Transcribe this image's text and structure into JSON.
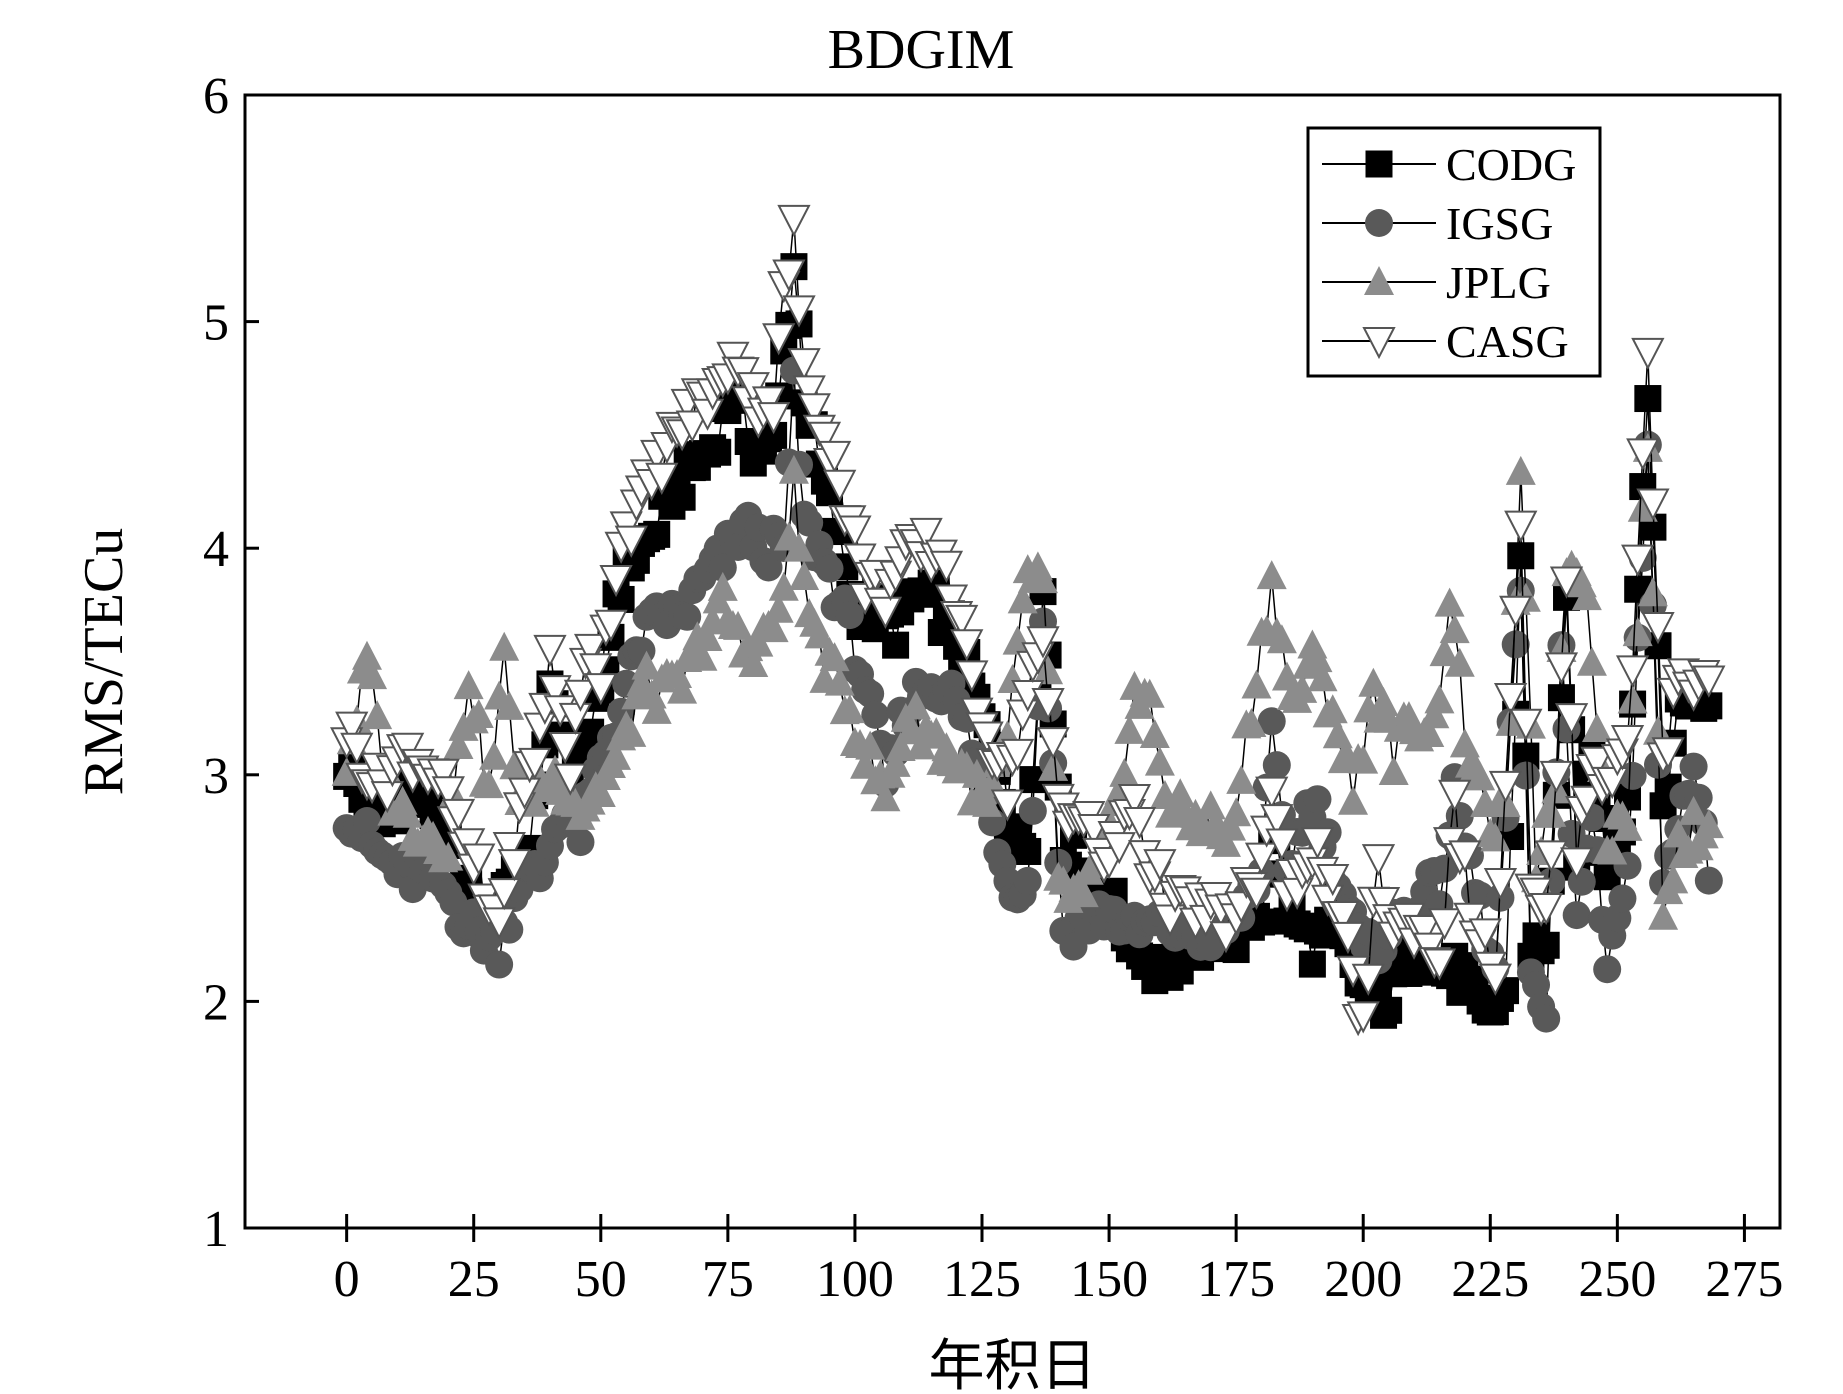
{
  "chart_data": {
    "type": "scatter",
    "title": "BDGIM",
    "xlabel": "年积日",
    "ylabel": "RMS/TECu",
    "xlim": [
      -20,
      282
    ],
    "ylim": [
      1,
      6
    ],
    "xticks": [
      0,
      25,
      50,
      75,
      100,
      125,
      150,
      175,
      200,
      225,
      250,
      275
    ],
    "yticks": [
      1,
      2,
      3,
      4,
      5,
      6
    ],
    "grid": false,
    "legend_position": "top-right",
    "series": [
      {
        "name": "CODG",
        "marker": "square",
        "color": "#000000",
        "anchors": [
          [
            0,
            3.05
          ],
          [
            6,
            2.75
          ],
          [
            12,
            2.95
          ],
          [
            18,
            2.85
          ],
          [
            22,
            2.55
          ],
          [
            26,
            2.38
          ],
          [
            28,
            2.35
          ],
          [
            30,
            2.45
          ],
          [
            33,
            2.6
          ],
          [
            36,
            2.65
          ],
          [
            40,
            3.35
          ],
          [
            44,
            2.95
          ],
          [
            48,
            3.2
          ],
          [
            50,
            3.3
          ],
          [
            53,
            3.8
          ],
          [
            56,
            3.95
          ],
          [
            60,
            4.05
          ],
          [
            64,
            4.25
          ],
          [
            68,
            4.35
          ],
          [
            72,
            4.45
          ],
          [
            76,
            4.7
          ],
          [
            80,
            4.45
          ],
          [
            84,
            4.45
          ],
          [
            88,
            5.25
          ],
          [
            90,
            4.7
          ],
          [
            93,
            4.35
          ],
          [
            96,
            4.1
          ],
          [
            100,
            3.75
          ],
          [
            104,
            3.7
          ],
          [
            108,
            3.65
          ],
          [
            112,
            3.8
          ],
          [
            116,
            3.75
          ],
          [
            120,
            3.6
          ],
          [
            124,
            3.3
          ],
          [
            128,
            3.05
          ],
          [
            131,
            2.7
          ],
          [
            134,
            2.7
          ],
          [
            137,
            3.8
          ],
          [
            141,
            2.7
          ],
          [
            145,
            2.6
          ],
          [
            150,
            2.45
          ],
          [
            155,
            2.25
          ],
          [
            160,
            2.15
          ],
          [
            165,
            2.2
          ],
          [
            170,
            2.3
          ],
          [
            175,
            2.3
          ],
          [
            180,
            2.4
          ],
          [
            182,
            2.8
          ],
          [
            185,
            2.4
          ],
          [
            190,
            2.25
          ],
          [
            195,
            2.3
          ],
          [
            200,
            2.05
          ],
          [
            205,
            2.0
          ],
          [
            210,
            2.25
          ],
          [
            215,
            2.15
          ],
          [
            220,
            2.1
          ],
          [
            224,
            1.9
          ],
          [
            228,
            2.05
          ],
          [
            231,
            3.95
          ],
          [
            233,
            2.25
          ],
          [
            236,
            2.2
          ],
          [
            240,
            3.7
          ],
          [
            242,
            2.55
          ],
          [
            245,
            3.1
          ],
          [
            248,
            2.6
          ],
          [
            252,
            2.9
          ],
          [
            256,
            4.75
          ],
          [
            259,
            2.85
          ],
          [
            262,
            3.3
          ],
          [
            265,
            3.4
          ],
          [
            268,
            3.3
          ]
        ]
      },
      {
        "name": "IGSG",
        "marker": "circle",
        "color": "#595959",
        "anchors": [
          [
            0,
            2.85
          ],
          [
            6,
            2.65
          ],
          [
            12,
            2.55
          ],
          [
            18,
            2.55
          ],
          [
            22,
            2.4
          ],
          [
            26,
            2.3
          ],
          [
            30,
            2.25
          ],
          [
            34,
            2.55
          ],
          [
            38,
            2.55
          ],
          [
            42,
            2.85
          ],
          [
            46,
            2.75
          ],
          [
            50,
            3.05
          ],
          [
            54,
            3.3
          ],
          [
            58,
            3.6
          ],
          [
            62,
            3.7
          ],
          [
            66,
            3.7
          ],
          [
            70,
            3.85
          ],
          [
            74,
            3.95
          ],
          [
            78,
            4.1
          ],
          [
            82,
            4.0
          ],
          [
            86,
            4.0
          ],
          [
            88,
            4.7
          ],
          [
            90,
            4.1
          ],
          [
            94,
            3.95
          ],
          [
            98,
            3.7
          ],
          [
            102,
            3.4
          ],
          [
            106,
            2.95
          ],
          [
            110,
            3.3
          ],
          [
            114,
            3.4
          ],
          [
            118,
            3.4
          ],
          [
            122,
            3.2
          ],
          [
            126,
            2.9
          ],
          [
            130,
            2.55
          ],
          [
            134,
            2.5
          ],
          [
            137,
            3.7
          ],
          [
            141,
            2.3
          ],
          [
            145,
            2.35
          ],
          [
            150,
            2.4
          ],
          [
            155,
            2.3
          ],
          [
            160,
            2.35
          ],
          [
            165,
            2.3
          ],
          [
            170,
            2.3
          ],
          [
            175,
            2.35
          ],
          [
            180,
            2.6
          ],
          [
            182,
            3.15
          ],
          [
            185,
            2.6
          ],
          [
            190,
            2.9
          ],
          [
            195,
            2.55
          ],
          [
            200,
            2.2
          ],
          [
            205,
            2.3
          ],
          [
            210,
            2.45
          ],
          [
            215,
            2.5
          ],
          [
            218,
            2.9
          ],
          [
            222,
            2.5
          ],
          [
            226,
            2.1
          ],
          [
            231,
            3.85
          ],
          [
            233,
            2.05
          ],
          [
            236,
            2.0
          ],
          [
            239,
            3.55
          ],
          [
            242,
            2.35
          ],
          [
            245,
            2.85
          ],
          [
            248,
            2.2
          ],
          [
            252,
            2.55
          ],
          [
            256,
            4.5
          ],
          [
            259,
            2.45
          ],
          [
            262,
            2.85
          ],
          [
            265,
            3.05
          ],
          [
            268,
            2.55
          ]
        ]
      },
      {
        "name": "JPLG",
        "marker": "triangle-up",
        "color": "#8c8c8c",
        "anchors": [
          [
            0,
            3.05
          ],
          [
            4,
            3.5
          ],
          [
            8,
            2.95
          ],
          [
            12,
            2.8
          ],
          [
            16,
            2.75
          ],
          [
            20,
            2.7
          ],
          [
            24,
            3.45
          ],
          [
            28,
            2.9
          ],
          [
            31,
            3.5
          ],
          [
            34,
            2.9
          ],
          [
            38,
            2.95
          ],
          [
            42,
            3.0
          ],
          [
            46,
            2.85
          ],
          [
            50,
            2.95
          ],
          [
            54,
            3.1
          ],
          [
            58,
            3.4
          ],
          [
            62,
            3.35
          ],
          [
            66,
            3.4
          ],
          [
            70,
            3.6
          ],
          [
            74,
            3.75
          ],
          [
            78,
            3.55
          ],
          [
            82,
            3.6
          ],
          [
            86,
            3.75
          ],
          [
            88,
            4.35
          ],
          [
            90,
            3.8
          ],
          [
            94,
            3.5
          ],
          [
            98,
            3.35
          ],
          [
            102,
            3.1
          ],
          [
            106,
            2.9
          ],
          [
            110,
            3.25
          ],
          [
            114,
            3.2
          ],
          [
            118,
            3.1
          ],
          [
            122,
            3.0
          ],
          [
            126,
            2.85
          ],
          [
            130,
            3.15
          ],
          [
            134,
            3.9
          ],
          [
            137,
            3.85
          ],
          [
            140,
            2.5
          ],
          [
            145,
            2.45
          ],
          [
            150,
            2.7
          ],
          [
            155,
            3.35
          ],
          [
            158,
            3.3
          ],
          [
            162,
            2.85
          ],
          [
            166,
            2.8
          ],
          [
            170,
            2.8
          ],
          [
            174,
            2.7
          ],
          [
            178,
            3.3
          ],
          [
            182,
            3.85
          ],
          [
            186,
            3.3
          ],
          [
            190,
            3.5
          ],
          [
            194,
            3.3
          ],
          [
            198,
            2.9
          ],
          [
            202,
            3.4
          ],
          [
            206,
            3.1
          ],
          [
            210,
            3.25
          ],
          [
            214,
            3.2
          ],
          [
            217,
            3.8
          ],
          [
            220,
            3.2
          ],
          [
            224,
            2.8
          ],
          [
            228,
            2.8
          ],
          [
            231,
            4.25
          ],
          [
            234,
            2.6
          ],
          [
            238,
            3.0
          ],
          [
            240,
            3.95
          ],
          [
            244,
            3.85
          ],
          [
            248,
            2.7
          ],
          [
            252,
            2.85
          ],
          [
            256,
            4.5
          ],
          [
            259,
            2.45
          ],
          [
            262,
            2.7
          ],
          [
            265,
            2.75
          ],
          [
            268,
            2.8
          ]
        ]
      },
      {
        "name": "CASG",
        "marker": "triangle-down",
        "color": "#ffffff",
        "anchors": [
          [
            0,
            3.2
          ],
          [
            6,
            2.95
          ],
          [
            12,
            3.1
          ],
          [
            18,
            3.0
          ],
          [
            22,
            2.75
          ],
          [
            26,
            2.55
          ],
          [
            28,
            2.4
          ],
          [
            30,
            2.4
          ],
          [
            34,
            2.8
          ],
          [
            38,
            3.2
          ],
          [
            40,
            3.5
          ],
          [
            44,
            3.05
          ],
          [
            48,
            3.6
          ],
          [
            50,
            3.45
          ],
          [
            54,
            4.05
          ],
          [
            58,
            4.2
          ],
          [
            62,
            4.4
          ],
          [
            66,
            4.55
          ],
          [
            70,
            4.65
          ],
          [
            74,
            4.7
          ],
          [
            76,
            4.9
          ],
          [
            80,
            4.65
          ],
          [
            84,
            4.65
          ],
          [
            86,
            5.1
          ],
          [
            88,
            5.4
          ],
          [
            90,
            4.75
          ],
          [
            94,
            4.55
          ],
          [
            98,
            4.2
          ],
          [
            102,
            3.85
          ],
          [
            106,
            3.8
          ],
          [
            110,
            3.95
          ],
          [
            114,
            4.0
          ],
          [
            118,
            3.95
          ],
          [
            122,
            3.5
          ],
          [
            126,
            3.2
          ],
          [
            130,
            2.95
          ],
          [
            134,
            3.35
          ],
          [
            137,
            3.55
          ],
          [
            140,
            2.9
          ],
          [
            145,
            2.8
          ],
          [
            150,
            2.6
          ],
          [
            155,
            2.9
          ],
          [
            158,
            2.6
          ],
          [
            162,
            2.45
          ],
          [
            166,
            2.4
          ],
          [
            170,
            2.4
          ],
          [
            175,
            2.35
          ],
          [
            180,
            2.6
          ],
          [
            182,
            2.95
          ],
          [
            185,
            2.45
          ],
          [
            190,
            2.7
          ],
          [
            195,
            2.4
          ],
          [
            200,
            1.9
          ],
          [
            203,
            2.6
          ],
          [
            206,
            2.3
          ],
          [
            210,
            2.35
          ],
          [
            215,
            2.2
          ],
          [
            218,
            2.85
          ],
          [
            222,
            2.3
          ],
          [
            226,
            2.15
          ],
          [
            231,
            4.05
          ],
          [
            233,
            2.45
          ],
          [
            236,
            2.35
          ],
          [
            240,
            3.8
          ],
          [
            242,
            2.7
          ],
          [
            245,
            3.05
          ],
          [
            248,
            3.0
          ],
          [
            252,
            3.1
          ],
          [
            256,
            4.8
          ],
          [
            259,
            3.0
          ],
          [
            262,
            3.5
          ],
          [
            265,
            3.4
          ],
          [
            268,
            3.4
          ]
        ]
      }
    ]
  }
}
